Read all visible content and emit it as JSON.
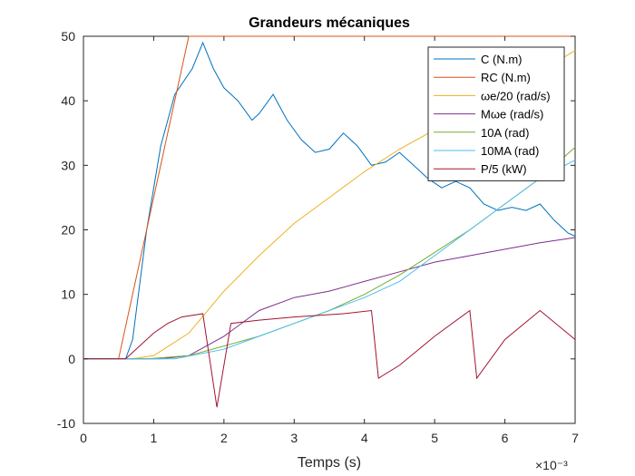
{
  "chart_data": {
    "type": "line",
    "title": "Grandeurs mécaniques",
    "xlabel": "Temps (s)",
    "ylabel": "",
    "xlim": [
      0,
      0.007
    ],
    "ylim": [
      -10,
      50
    ],
    "x_ticks": [
      0,
      1,
      2,
      3,
      4,
      5,
      6,
      7
    ],
    "y_ticks": [
      -10,
      0,
      10,
      20,
      30,
      40,
      50
    ],
    "x_exponent": "×10⁻³",
    "grid": false,
    "legend": {
      "position": "top-right"
    },
    "series": [
      {
        "name": "C (N.m)",
        "color": "#0072BD",
        "x": [
          0,
          0.0006,
          0.0007,
          0.0009,
          0.0011,
          0.0013,
          0.00155,
          0.0017,
          0.00185,
          0.002,
          0.0022,
          0.0024,
          0.0025,
          0.0027,
          0.0029,
          0.0031,
          0.0033,
          0.0035,
          0.0037,
          0.0039,
          0.0041,
          0.0043,
          0.0045,
          0.0047,
          0.0049,
          0.0051,
          0.0053,
          0.0055,
          0.0057,
          0.0059,
          0.0061,
          0.0063,
          0.0065,
          0.0067,
          0.0069,
          0.007
        ],
        "y": [
          0,
          0,
          3,
          20,
          33,
          41,
          45,
          49,
          45,
          42,
          40,
          37,
          38,
          41,
          37,
          34,
          32,
          32.5,
          35,
          33,
          30,
          30.5,
          32,
          30,
          28,
          26.5,
          27.5,
          26.5,
          24,
          23,
          23.5,
          23,
          24,
          21.5,
          19.5,
          19
        ]
      },
      {
        "name": "RC (N.m)",
        "color": "#D95319",
        "x": [
          0,
          0.0005,
          0.0015,
          0.007
        ],
        "y": [
          0,
          0,
          50,
          50
        ]
      },
      {
        "name": "ωe/20 (rad/s)",
        "color": "#EDB120",
        "x": [
          0,
          0.0007,
          0.001,
          0.0015,
          0.002,
          0.0025,
          0.003,
          0.0035,
          0.004,
          0.0045,
          0.005,
          0.0055,
          0.006,
          0.0065,
          0.007
        ],
        "y": [
          0,
          0,
          0.5,
          4,
          10.5,
          16,
          21,
          25,
          29,
          32.5,
          35.5,
          38.5,
          41.5,
          44.5,
          47.8
        ]
      },
      {
        "name": "Mωe (rad/s)",
        "color": "#7E2F8E",
        "x": [
          0,
          0.0011,
          0.0015,
          0.002,
          0.0025,
          0.003,
          0.0035,
          0.004,
          0.0045,
          0.005,
          0.0055,
          0.006,
          0.0065,
          0.007
        ],
        "y": [
          0,
          0,
          0.5,
          3.5,
          7.5,
          9.5,
          10.5,
          12,
          13.5,
          15,
          16,
          17,
          18,
          18.8
        ]
      },
      {
        "name": "10A (rad)",
        "color": "#77AC30",
        "x": [
          0,
          0.0009,
          0.0015,
          0.002,
          0.0025,
          0.003,
          0.0035,
          0.004,
          0.0045,
          0.005,
          0.0055,
          0.006,
          0.0065,
          0.007
        ],
        "y": [
          0,
          0,
          0.5,
          2,
          3.5,
          5.5,
          7.5,
          10,
          13,
          16.5,
          20,
          24,
          28,
          32.8
        ]
      },
      {
        "name": "10MA (rad)",
        "color": "#4DBEEE",
        "x": [
          0,
          0.0013,
          0.002,
          0.0025,
          0.003,
          0.0035,
          0.004,
          0.0045,
          0.005,
          0.0055,
          0.006,
          0.0065,
          0.007
        ],
        "y": [
          0,
          0,
          1.5,
          3.5,
          5.5,
          7.5,
          9.5,
          12,
          16,
          20,
          24,
          28,
          30.8
        ]
      },
      {
        "name": "P/5 (kW)",
        "color": "#A2142F",
        "x": [
          0,
          0.0006,
          0.0008,
          0.001,
          0.0012,
          0.0014,
          0.0017,
          0.0019,
          0.0021,
          0.0025,
          0.003,
          0.0037,
          0.0041,
          0.0042,
          0.0045,
          0.005,
          0.0055,
          0.0056,
          0.006,
          0.0065,
          0.007
        ],
        "y": [
          0,
          0,
          2,
          4,
          5.5,
          6.5,
          7,
          -7.5,
          5.5,
          6,
          6.5,
          7,
          7.5,
          -3,
          -1,
          3.5,
          7.5,
          -3,
          3,
          7.5,
          3
        ]
      }
    ]
  }
}
